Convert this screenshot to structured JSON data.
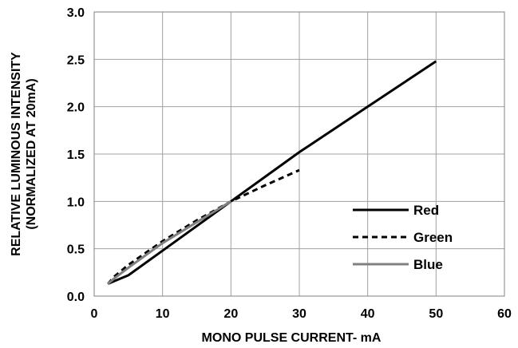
{
  "chart_data": {
    "type": "line",
    "title": "",
    "xlabel": "MONO PULSE CURRENT- mA",
    "ylabel_lines": [
      "RELATIVE LUMINOUS INTENSITY",
      "(NORMALIZED AT 20mA)"
    ],
    "xlim": [
      0,
      60
    ],
    "ylim": [
      0,
      3.0
    ],
    "x_ticks": [
      0,
      10,
      20,
      30,
      40,
      50,
      60
    ],
    "x_tick_labels": [
      "0",
      "10",
      "20",
      "30",
      "40",
      "50",
      "60"
    ],
    "y_ticks": [
      0,
      0.5,
      1.0,
      1.5,
      2.0,
      2.5,
      3.0
    ],
    "y_tick_labels": [
      "0.0",
      "0.5",
      "1.0",
      "1.5",
      "2.0",
      "2.5",
      "3.0"
    ],
    "grid": true,
    "legend_position": "bottom-right",
    "series": [
      {
        "name": "Red",
        "color": "#000000",
        "dash": "solid",
        "points": [
          [
            2,
            0.13
          ],
          [
            3,
            0.16
          ],
          [
            5,
            0.22
          ],
          [
            10,
            0.48
          ],
          [
            15,
            0.74
          ],
          [
            20,
            1.0
          ],
          [
            25,
            1.26
          ],
          [
            30,
            1.52
          ],
          [
            40,
            2.0
          ],
          [
            50,
            2.48
          ]
        ]
      },
      {
        "name": "Green",
        "color": "#000000",
        "dash": "dashed",
        "points": [
          [
            2,
            0.13
          ],
          [
            3,
            0.21
          ],
          [
            5,
            0.33
          ],
          [
            10,
            0.58
          ],
          [
            15,
            0.8
          ],
          [
            20,
            1.0
          ],
          [
            25,
            1.17
          ],
          [
            30,
            1.33
          ]
        ]
      },
      {
        "name": "Blue",
        "color": "#808080",
        "dash": "solid",
        "points": [
          [
            2,
            0.13
          ],
          [
            3,
            0.19
          ],
          [
            5,
            0.3
          ],
          [
            10,
            0.56
          ],
          [
            15,
            0.78
          ],
          [
            20,
            1.0
          ]
        ]
      }
    ]
  }
}
